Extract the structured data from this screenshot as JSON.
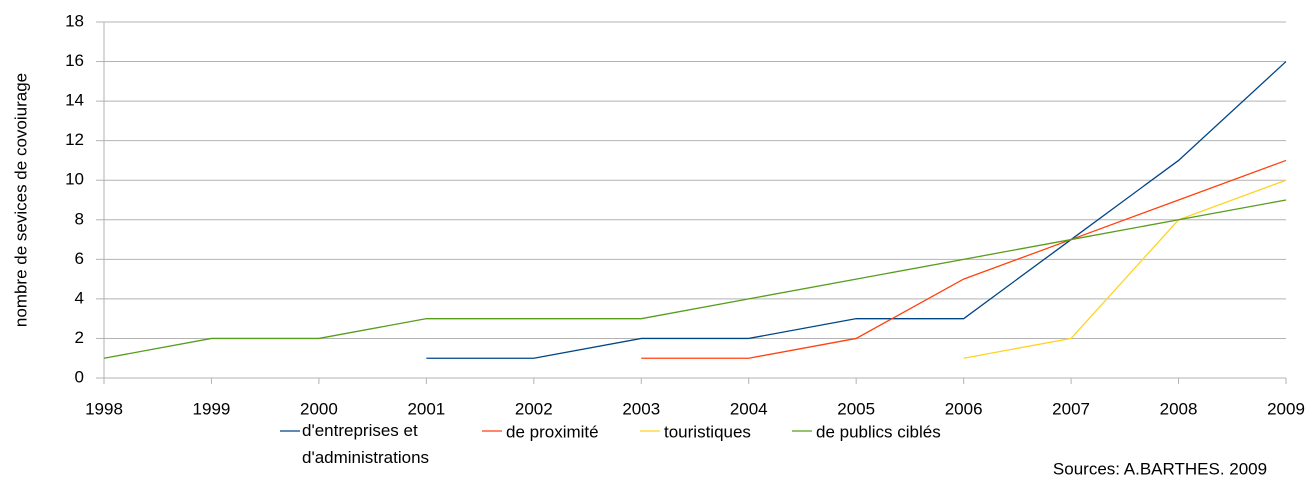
{
  "chart_data": {
    "type": "line",
    "y_label": "nombre de sevices de covoiurage",
    "source": "Sources: A.BARTHES. 2009",
    "x": [
      1998,
      1999,
      2000,
      2001,
      2002,
      2003,
      2004,
      2005,
      2006,
      2007,
      2008,
      2009
    ],
    "xlim": [
      1998,
      2009
    ],
    "xticks": [
      1998,
      1999,
      2000,
      2001,
      2002,
      2003,
      2004,
      2005,
      2006,
      2007,
      2008,
      2009
    ],
    "ylim": [
      0,
      18
    ],
    "yticks": [
      0,
      2,
      4,
      6,
      8,
      10,
      12,
      14,
      16,
      18
    ],
    "grid": true,
    "series": [
      {
        "name": "d'entreprises et d'administrations",
        "color": "#004586",
        "values": [
          null,
          null,
          null,
          1,
          1,
          2,
          2,
          3,
          3,
          7,
          11,
          16
        ]
      },
      {
        "name": "de proximité",
        "color": "#ff420e",
        "values": [
          null,
          null,
          null,
          null,
          null,
          1,
          1,
          2,
          5,
          7,
          9,
          11
        ]
      },
      {
        "name": "touristiques",
        "color": "#ffd320",
        "values": [
          null,
          null,
          null,
          null,
          null,
          null,
          null,
          null,
          1,
          2,
          8,
          10
        ]
      },
      {
        "name": "de publics ciblés",
        "color": "#579d1c",
        "values": [
          1,
          2,
          2,
          3,
          3,
          3,
          4,
          5,
          6,
          7,
          8,
          9
        ]
      }
    ]
  }
}
